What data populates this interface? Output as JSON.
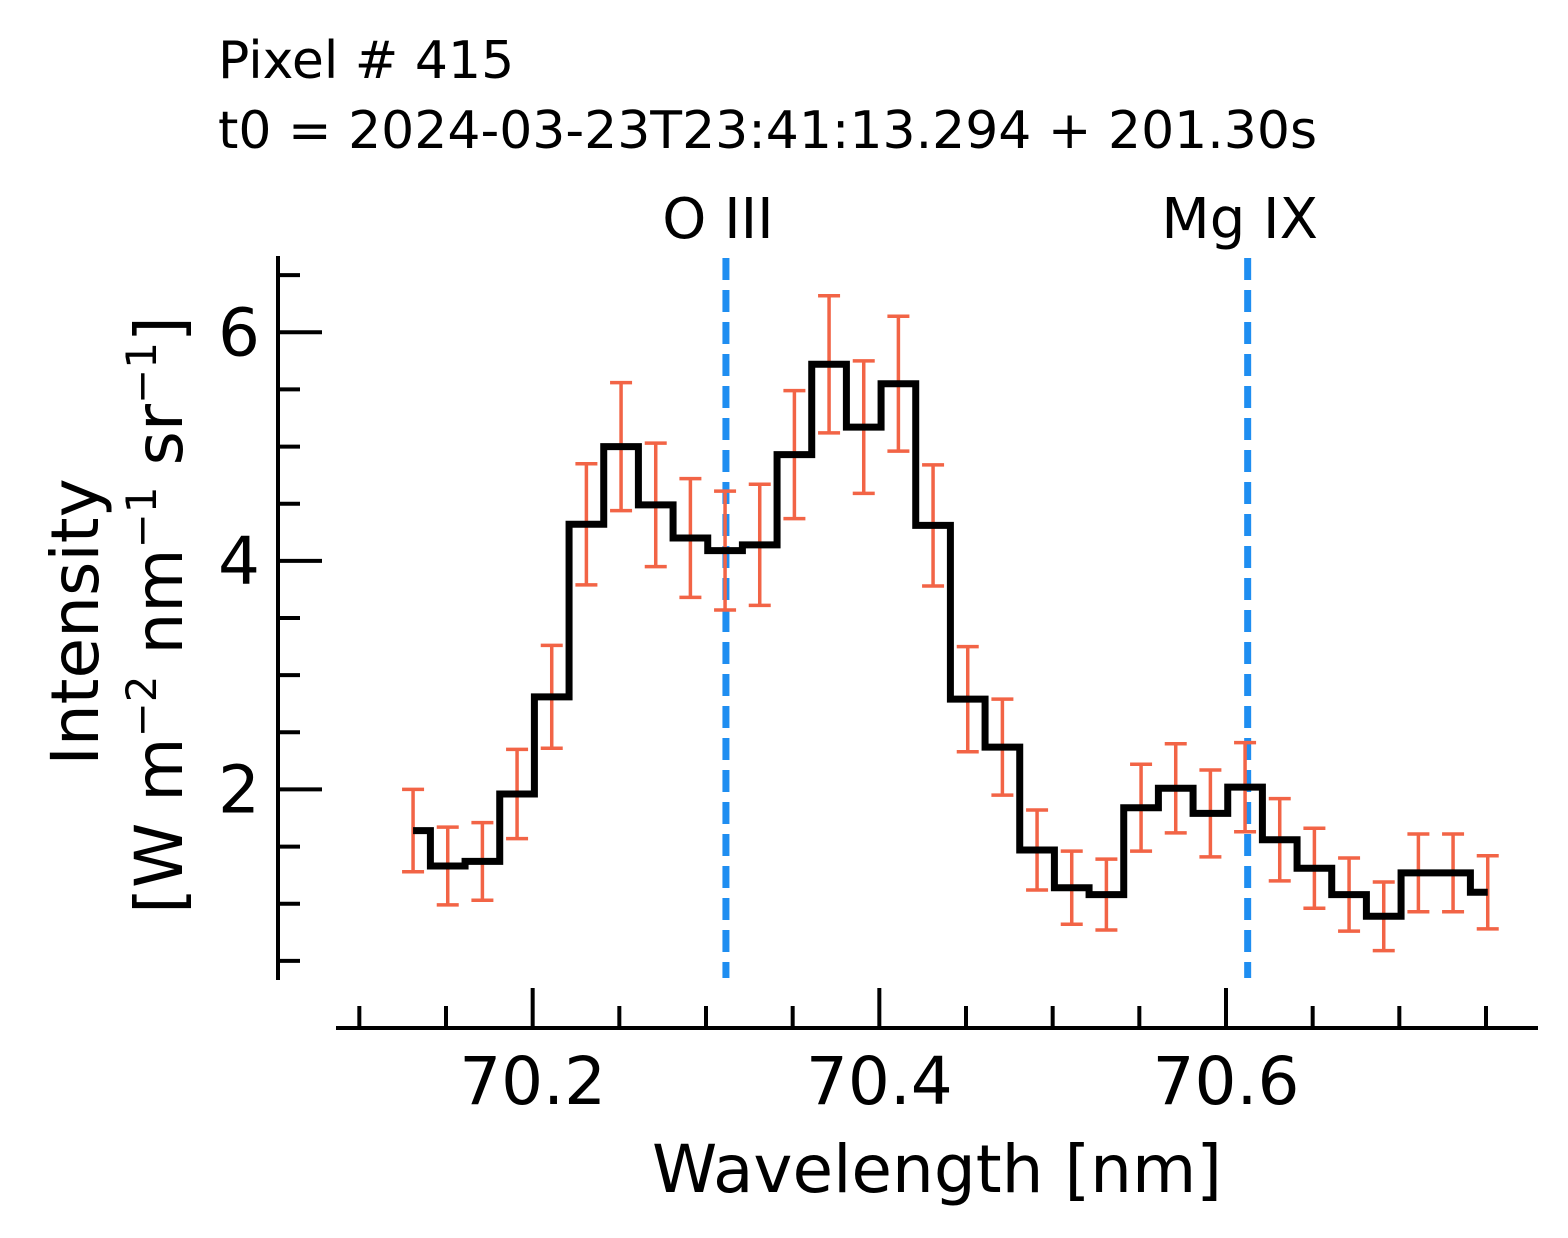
{
  "chart_data": {
    "type": "line",
    "drawstyle": "steps-mid",
    "title_lines": [
      "Pixel # 415",
      "t0 = 2024-03-23T23:41:13.294 + 201.30s"
    ],
    "xlabel": "Wavelength [nm]",
    "ylabel": {
      "line1": "Intensity",
      "prefix": "[W m",
      "exp1": "−2",
      "mid1": " nm",
      "exp2": "−1",
      "mid2": " sr",
      "exp3": "−1",
      "suffix": "]"
    },
    "xlim": [
      70.09,
      70.78
    ],
    "ylim": [
      0.35,
      6.65
    ],
    "xticks": [
      {
        "value": 70.2,
        "label": "70.2"
      },
      {
        "value": 70.4,
        "label": "70.4"
      },
      {
        "value": 70.6,
        "label": "70.6"
      }
    ],
    "yticks": [
      {
        "value": 2,
        "label": "2"
      },
      {
        "value": 4,
        "label": "4"
      },
      {
        "value": 6,
        "label": "6"
      }
    ],
    "minor_x_step": 0.05,
    "minor_y_step": 0.5,
    "line_color": "#000000",
    "error_color": "#f26446",
    "ref_line_color": "#1f8ef1",
    "x": [
      70.131,
      70.151,
      70.171,
      70.191,
      70.211,
      70.231,
      70.251,
      70.271,
      70.291,
      70.311,
      70.331,
      70.351,
      70.371,
      70.391,
      70.411,
      70.431,
      70.451,
      70.471,
      70.491,
      70.511,
      70.531,
      70.551,
      70.571,
      70.591,
      70.611,
      70.631,
      70.651,
      70.671,
      70.691,
      70.711,
      70.731,
      70.751
    ],
    "y": [
      1.64,
      1.33,
      1.37,
      1.96,
      2.81,
      4.32,
      5.0,
      4.49,
      4.2,
      4.09,
      4.14,
      4.93,
      5.72,
      5.17,
      5.55,
      4.31,
      2.79,
      2.37,
      1.47,
      1.14,
      1.08,
      1.84,
      2.01,
      1.79,
      2.02,
      1.56,
      1.31,
      1.08,
      0.89,
      1.27,
      1.27,
      1.1
    ],
    "yerr": [
      0.36,
      0.34,
      0.34,
      0.39,
      0.45,
      0.53,
      0.56,
      0.54,
      0.52,
      0.52,
      0.53,
      0.56,
      0.6,
      0.58,
      0.59,
      0.53,
      0.46,
      0.42,
      0.35,
      0.32,
      0.31,
      0.38,
      0.39,
      0.38,
      0.39,
      0.36,
      0.35,
      0.32,
      0.3,
      0.34,
      0.34,
      0.32
    ],
    "reference_lines": [
      {
        "x": 70.3115,
        "label": "O III"
      },
      {
        "x": 70.6125,
        "label": "Mg IX"
      }
    ]
  }
}
